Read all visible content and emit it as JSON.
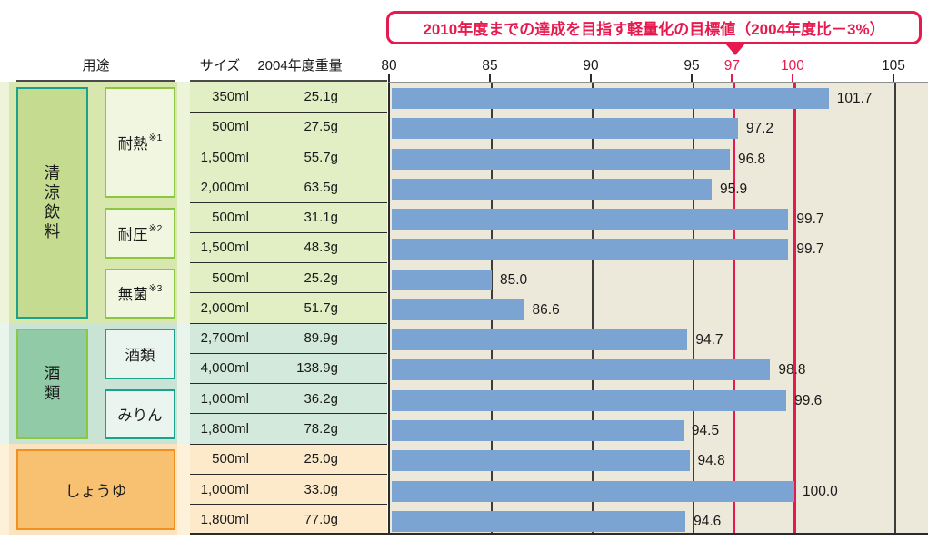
{
  "annotation": {
    "text": "2010年度までの達成を目指す軽量化の目標値（2004年度比－3%）"
  },
  "columns": {
    "use": "用途",
    "size": "サイズ",
    "weight": "2004年度重量"
  },
  "axis": {
    "min": 80,
    "max": 105,
    "ticks": [
      {
        "label": "80",
        "value": 80,
        "highlight": false
      },
      {
        "label": "85",
        "value": 85,
        "highlight": false
      },
      {
        "label": "90",
        "value": 90,
        "highlight": false
      },
      {
        "label": "95",
        "value": 95,
        "highlight": false
      },
      {
        "label": "97",
        "value": 97,
        "highlight": true
      },
      {
        "label": "100",
        "value": 100,
        "highlight": true
      },
      {
        "label": "105",
        "value": 105,
        "highlight": false
      }
    ]
  },
  "colors": {
    "bar": "#7ca4d2",
    "target_line": "#e61a4f",
    "grid_line": "#3c3c3c",
    "plot_bg": "#ece9da"
  },
  "sections": [
    {
      "label": "清涼飲料",
      "bg": "#d8e7ae",
      "pale_bg": "#eef4da",
      "table_bg": "#e2efc5",
      "box_fill": "#c5dc90",
      "box_border": "#1ba18e",
      "sub_fill": "#f0f6e0",
      "sub_border": "#8dc63f",
      "row_start": 0,
      "row_end": 7,
      "subs": [
        {
          "label": "耐熱",
          "note": "※1",
          "row_start": 0,
          "row_end": 3
        },
        {
          "label": "耐圧",
          "note": "※2",
          "row_start": 4,
          "row_end": 5
        },
        {
          "label": "無菌",
          "note": "※3",
          "row_start": 6,
          "row_end": 7
        }
      ]
    },
    {
      "label": "酒類",
      "bg": "#c9e4d4",
      "pale_bg": "#e9f4ec",
      "table_bg": "#d3e9db",
      "box_fill": "#90caa7",
      "box_border": "#8dc63f",
      "sub_fill": "#eaf5ef",
      "sub_border": "#1ba18e",
      "row_start": 8,
      "row_end": 11,
      "subs": [
        {
          "label": "酒類",
          "note": "",
          "row_start": 8,
          "row_end": 9
        },
        {
          "label": "みりん",
          "note": "",
          "row_start": 10,
          "row_end": 11
        }
      ]
    },
    {
      "label": "しょうゆ",
      "bg": "#fbe3bf",
      "pale_bg": "#fdf1da",
      "table_bg": "#fceacb",
      "box_fill": "#f8c172",
      "box_border": "#f1921e",
      "row_start": 12,
      "row_end": 14,
      "subs": []
    }
  ],
  "chart_data": {
    "type": "bar",
    "orientation": "horizontal",
    "title": "2010年度までの達成を目指す軽量化の目標値（2004年度比－3%）",
    "xlabel": "",
    "ylabel": "",
    "xlim": [
      80,
      105
    ],
    "x_ticks": [
      80,
      85,
      90,
      95,
      97,
      100,
      105
    ],
    "target_ticks": [
      97,
      100
    ],
    "grid": true,
    "rows": [
      {
        "group": "清涼飲料",
        "subgroup": "耐熱※1",
        "size": "350ml",
        "weight_2004": "25.1g",
        "value": 101.7,
        "label": "101.7"
      },
      {
        "group": "清涼飲料",
        "subgroup": "耐熱※1",
        "size": "500ml",
        "weight_2004": "27.5g",
        "value": 97.2,
        "label": "97.2"
      },
      {
        "group": "清涼飲料",
        "subgroup": "耐熱※1",
        "size": "1,500ml",
        "weight_2004": "55.7g",
        "value": 96.8,
        "label": "96.8"
      },
      {
        "group": "清涼飲料",
        "subgroup": "耐熱※1",
        "size": "2,000ml",
        "weight_2004": "63.5g",
        "value": 95.9,
        "label": "95.9"
      },
      {
        "group": "清涼飲料",
        "subgroup": "耐圧※2",
        "size": "500ml",
        "weight_2004": "31.1g",
        "value": 99.7,
        "label": "99.7"
      },
      {
        "group": "清涼飲料",
        "subgroup": "耐圧※2",
        "size": "1,500ml",
        "weight_2004": "48.3g",
        "value": 99.7,
        "label": "99.7"
      },
      {
        "group": "清涼飲料",
        "subgroup": "無菌※3",
        "size": "500ml",
        "weight_2004": "25.2g",
        "value": 85.0,
        "label": "85.0"
      },
      {
        "group": "清涼飲料",
        "subgroup": "無菌※3",
        "size": "2,000ml",
        "weight_2004": "51.7g",
        "value": 86.6,
        "label": "86.6"
      },
      {
        "group": "酒類",
        "subgroup": "酒類",
        "size": "2,700ml",
        "weight_2004": "89.9g",
        "value": 94.7,
        "label": "94.7"
      },
      {
        "group": "酒類",
        "subgroup": "酒類",
        "size": "4,000ml",
        "weight_2004": "138.9g",
        "value": 98.8,
        "label": "98.8"
      },
      {
        "group": "酒類",
        "subgroup": "みりん",
        "size": "1,000ml",
        "weight_2004": "36.2g",
        "value": 99.6,
        "label": "99.6"
      },
      {
        "group": "酒類",
        "subgroup": "みりん",
        "size": "1,800ml",
        "weight_2004": "78.2g",
        "value": 94.5,
        "label": "94.5"
      },
      {
        "group": "しょうゆ",
        "subgroup": "",
        "size": "500ml",
        "weight_2004": "25.0g",
        "value": 94.8,
        "label": "94.8"
      },
      {
        "group": "しょうゆ",
        "subgroup": "",
        "size": "1,000ml",
        "weight_2004": "33.0g",
        "value": 100.0,
        "label": "100.0"
      },
      {
        "group": "しょうゆ",
        "subgroup": "",
        "size": "1,800ml",
        "weight_2004": "77.0g",
        "value": 94.6,
        "label": "94.6"
      }
    ]
  }
}
